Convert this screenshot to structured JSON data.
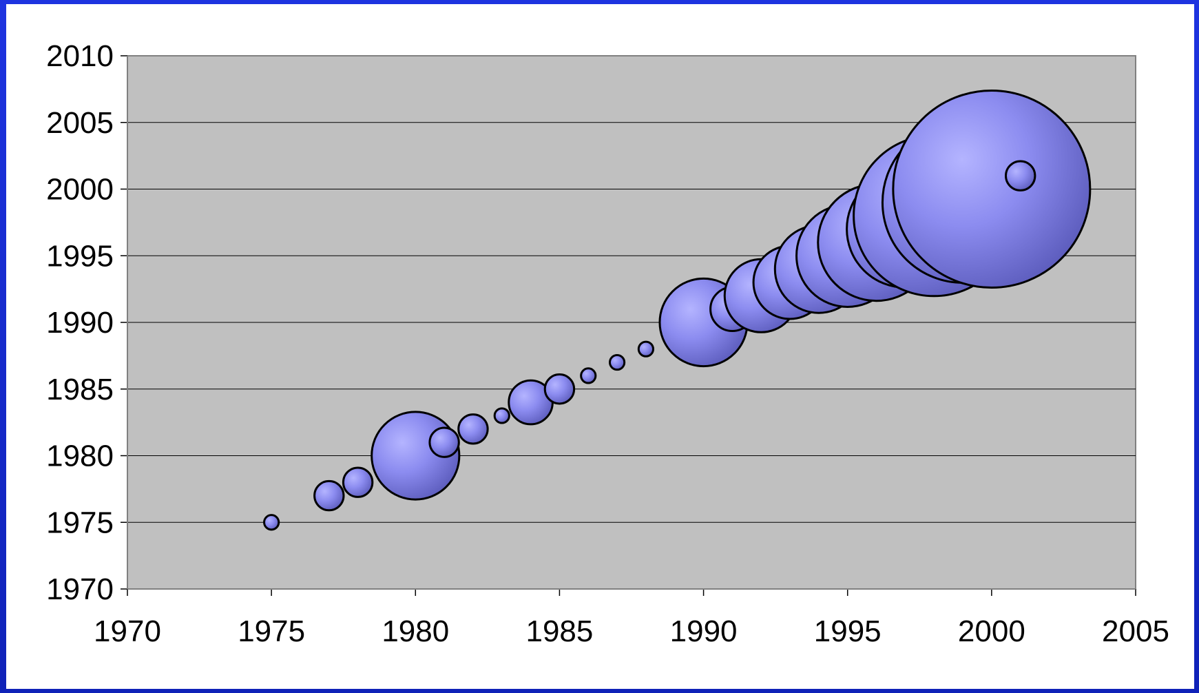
{
  "chart_data": {
    "type": "bubble",
    "title": "",
    "xlabel": "",
    "ylabel": "",
    "xlim": [
      1970,
      2005
    ],
    "ylim": [
      1970,
      2010
    ],
    "x_ticks": [
      "1970",
      "1975",
      "1980",
      "1985",
      "1990",
      "1995",
      "2000",
      "2005"
    ],
    "y_ticks": [
      "1970",
      "1975",
      "1980",
      "1985",
      "1990",
      "1995",
      "2000",
      "2005",
      "2010"
    ],
    "grid": "horizontal",
    "legend": "none",
    "colors": {
      "plot_background": "#c0c0c0",
      "bubble_fill": "#7b7be6",
      "bubble_highlight": "#b4b4ff",
      "bubble_stroke": "#000000",
      "frame": "#1a2fd6"
    },
    "series": [
      {
        "points": [
          {
            "x": 1975,
            "y": 1975,
            "size": 1
          },
          {
            "x": 1977,
            "y": 1977,
            "size": 4
          },
          {
            "x": 1978,
            "y": 1978,
            "size": 4
          },
          {
            "x": 1980,
            "y": 1980,
            "size": 36
          },
          {
            "x": 1981,
            "y": 1981,
            "size": 4
          },
          {
            "x": 1982,
            "y": 1982,
            "size": 4
          },
          {
            "x": 1983,
            "y": 1983,
            "size": 1
          },
          {
            "x": 1984,
            "y": 1984,
            "size": 9
          },
          {
            "x": 1985,
            "y": 1985,
            "size": 4
          },
          {
            "x": 1986,
            "y": 1986,
            "size": 1
          },
          {
            "x": 1987,
            "y": 1987,
            "size": 1
          },
          {
            "x": 1988,
            "y": 1988,
            "size": 1
          },
          {
            "x": 1990,
            "y": 1990,
            "size": 36
          },
          {
            "x": 1991,
            "y": 1991,
            "size": 9
          },
          {
            "x": 1992,
            "y": 1992,
            "size": 25
          },
          {
            "x": 1993,
            "y": 1993,
            "size": 25
          },
          {
            "x": 1994,
            "y": 1994,
            "size": 36
          },
          {
            "x": 1995,
            "y": 1995,
            "size": 49
          },
          {
            "x": 1996,
            "y": 1996,
            "size": 64
          },
          {
            "x": 1997,
            "y": 1997,
            "size": 64
          },
          {
            "x": 1998,
            "y": 1998,
            "size": 121
          },
          {
            "x": 1999,
            "y": 1999,
            "size": 121
          },
          {
            "x": 2000,
            "y": 2000,
            "size": 182
          },
          {
            "x": 2001,
            "y": 2001,
            "size": 4
          }
        ]
      }
    ]
  }
}
